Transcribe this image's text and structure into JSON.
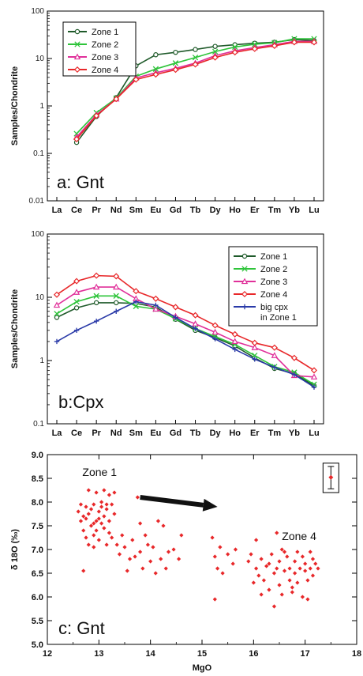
{
  "chart_data": [
    {
      "type": "line",
      "panel_label": "a: Gnt",
      "ylabel": "Samples/Chondrite",
      "yscale": "log",
      "ylim": [
        0.01,
        100
      ],
      "yticks": [
        "100",
        "10",
        "1",
        "0.1",
        "0.01"
      ],
      "categories": [
        "La",
        "Ce",
        "Pr",
        "Nd",
        "Sm",
        "Eu",
        "Gd",
        "Tb",
        "Dy",
        "Ho",
        "Er",
        "Tm",
        "Yb",
        "Lu"
      ],
      "legend_position": "top-left",
      "series": [
        {
          "name": "Zone 1",
          "color": "#1f5a2a",
          "marker": "circle",
          "values": [
            null,
            0.17,
            0.6,
            1.5,
            7,
            12,
            13.5,
            15.5,
            18,
            19.5,
            21,
            22,
            25,
            24
          ]
        },
        {
          "name": "Zone 2",
          "color": "#2ec43a",
          "marker": "x",
          "values": [
            null,
            0.26,
            0.72,
            1.45,
            4.2,
            6,
            8,
            10.5,
            14,
            17.5,
            20,
            21.5,
            26,
            26
          ]
        },
        {
          "name": "Zone 3",
          "color": "#e0309a",
          "marker": "triangle",
          "values": [
            null,
            0.22,
            0.65,
            1.4,
            3.9,
            5,
            6.2,
            8,
            11.5,
            14.5,
            17,
            19.5,
            23,
            23
          ]
        },
        {
          "name": "Zone 4",
          "color": "#e8282a",
          "marker": "diamond",
          "values": [
            null,
            0.2,
            0.62,
            1.4,
            3.6,
            4.6,
            5.8,
            7.5,
            10.5,
            13.5,
            16,
            18.5,
            22,
            22
          ]
        }
      ]
    },
    {
      "type": "line",
      "panel_label": "b:Cpx",
      "ylabel": "Samples/Chondrite",
      "yscale": "log",
      "ylim": [
        0.1,
        100
      ],
      "yticks": [
        "100",
        "10",
        "1",
        "0.1"
      ],
      "categories": [
        "La",
        "Ce",
        "Pr",
        "Nd",
        "Sm",
        "Eu",
        "Gd",
        "Tb",
        "Dy",
        "Ho",
        "Er",
        "Tm",
        "Yb",
        "Lu"
      ],
      "legend_position": "top-right",
      "series": [
        {
          "name": "Zone 1",
          "color": "#1f5a2a",
          "marker": "circle",
          "values": [
            4.8,
            6.8,
            8.2,
            8.2,
            8,
            7,
            4.5,
            3,
            2.3,
            1.7,
            1.1,
            0.75,
            0.62,
            0.4
          ]
        },
        {
          "name": "Zone 2",
          "color": "#2ec43a",
          "marker": "x",
          "values": [
            5.5,
            8.5,
            10.5,
            10.5,
            7.2,
            6.5,
            4.6,
            3.2,
            2.4,
            1.8,
            1.2,
            0.8,
            0.65,
            0.42
          ]
        },
        {
          "name": "Zone 3",
          "color": "#e0309a",
          "marker": "triangle",
          "values": [
            7.5,
            12,
            14.5,
            14.5,
            9.5,
            6.5,
            5,
            3.8,
            2.8,
            2,
            1.6,
            1.2,
            0.58,
            0.55
          ]
        },
        {
          "name": "Zone 4",
          "color": "#e8282a",
          "marker": "diamond",
          "values": [
            11,
            18,
            22,
            21.5,
            12.5,
            9.5,
            7,
            5.2,
            3.6,
            2.6,
            1.9,
            1.6,
            1.1,
            0.7
          ]
        },
        {
          "name": "big cpx\nin Zone 1",
          "color": "#2a3aa8",
          "marker": "plus",
          "values": [
            2,
            3,
            4.2,
            6,
            8.5,
            7.5,
            4.8,
            3.2,
            2.2,
            1.5,
            1.05,
            0.78,
            0.6,
            0.38
          ]
        }
      ]
    },
    {
      "type": "scatter",
      "panel_label": "c: Gnt",
      "xlabel": "MgO",
      "ylabel": "δ 18O (‰)",
      "xlim": [
        12,
        18
      ],
      "ylim": [
        5.0,
        9.0
      ],
      "xticks": [
        "12",
        "13",
        "14",
        "15",
        "16",
        "17",
        "18"
      ],
      "yticks": [
        "9.0",
        "8.5",
        "8.0",
        "7.5",
        "7.0",
        "6.5",
        "6.0",
        "5.5",
        "5.0"
      ],
      "annotations": [
        "Zone 1",
        "Zone 4"
      ],
      "arrow": {
        "from": [
          13.8,
          8.1
        ],
        "to": [
          15.3,
          7.9
        ]
      },
      "error_bar": {
        "x": 17.5,
        "y": 8.52,
        "low": 8.28,
        "high": 8.75
      },
      "color": "#e8282a",
      "points": [
        [
          12.6,
          7.8
        ],
        [
          12.65,
          7.6
        ],
        [
          12.7,
          7.7
        ],
        [
          12.7,
          6.55
        ],
        [
          12.7,
          7.4
        ],
        [
          12.75,
          7.9
        ],
        [
          12.75,
          7.25
        ],
        [
          12.8,
          8.25
        ],
        [
          12.8,
          7.75
        ],
        [
          12.8,
          7.1
        ],
        [
          12.85,
          7.5
        ],
        [
          12.85,
          7.85
        ],
        [
          12.9,
          7.95
        ],
        [
          12.9,
          7.3
        ],
        [
          12.9,
          7.05
        ],
        [
          12.95,
          8.2
        ],
        [
          12.95,
          7.6
        ],
        [
          12.95,
          7.4
        ],
        [
          13.0,
          7.8
        ],
        [
          13.0,
          7.65
        ],
        [
          13.0,
          7.2
        ],
        [
          13.05,
          8.0
        ],
        [
          13.05,
          7.9
        ],
        [
          13.1,
          7.7
        ],
        [
          13.1,
          7.45
        ],
        [
          13.1,
          8.25
        ],
        [
          13.15,
          7.85
        ],
        [
          13.15,
          7.1
        ],
        [
          13.2,
          8.15
        ],
        [
          13.2,
          7.6
        ],
        [
          13.2,
          7.35
        ],
        [
          13.25,
          7.95
        ],
        [
          13.25,
          7.25
        ],
        [
          13.3,
          8.2
        ],
        [
          13.3,
          7.75
        ],
        [
          12.65,
          7.95
        ],
        [
          12.9,
          7.55
        ],
        [
          13.05,
          7.55
        ],
        [
          12.75,
          7.65
        ],
        [
          13.15,
          7.95
        ],
        [
          13.35,
          7.1
        ],
        [
          13.4,
          6.9
        ],
        [
          13.45,
          7.3
        ],
        [
          13.5,
          7.05
        ],
        [
          13.55,
          6.55
        ],
        [
          13.6,
          6.8
        ],
        [
          13.65,
          7.2
        ],
        [
          13.75,
          8.1
        ],
        [
          13.8,
          6.95
        ],
        [
          13.8,
          7.55
        ],
        [
          13.85,
          6.6
        ],
        [
          13.9,
          7.3
        ],
        [
          13.95,
          7.1
        ],
        [
          14.0,
          6.75
        ],
        [
          14.05,
          7.05
        ],
        [
          14.15,
          7.6
        ],
        [
          14.2,
          6.8
        ],
        [
          14.25,
          7.5
        ],
        [
          14.3,
          6.6
        ],
        [
          14.35,
          6.95
        ],
        [
          14.45,
          7.0
        ],
        [
          14.55,
          6.8
        ],
        [
          14.6,
          7.3
        ],
        [
          14.1,
          6.5
        ],
        [
          13.7,
          6.85
        ],
        [
          15.2,
          7.25
        ],
        [
          15.25,
          6.85
        ],
        [
          15.3,
          6.6
        ],
        [
          15.35,
          7.05
        ],
        [
          15.25,
          5.95
        ],
        [
          15.4,
          6.5
        ],
        [
          15.5,
          6.9
        ],
        [
          15.6,
          6.7
        ],
        [
          15.65,
          7.0
        ],
        [
          15.9,
          6.75
        ],
        [
          15.95,
          6.9
        ],
        [
          16.0,
          6.3
        ],
        [
          16.05,
          6.6
        ],
        [
          16.05,
          7.2
        ],
        [
          16.1,
          6.45
        ],
        [
          16.15,
          6.8
        ],
        [
          16.2,
          6.35
        ],
        [
          16.25,
          6.65
        ],
        [
          16.3,
          6.15
        ],
        [
          16.35,
          6.9
        ],
        [
          16.4,
          6.5
        ],
        [
          16.4,
          5.8
        ],
        [
          16.45,
          6.6
        ],
        [
          16.5,
          6.75
        ],
        [
          16.5,
          6.25
        ],
        [
          16.55,
          7.0
        ],
        [
          16.55,
          6.05
        ],
        [
          16.6,
          6.55
        ],
        [
          16.65,
          6.85
        ],
        [
          16.7,
          6.6
        ],
        [
          16.7,
          6.35
        ],
        [
          16.75,
          6.1
        ],
        [
          16.8,
          6.75
        ],
        [
          16.8,
          6.5
        ],
        [
          16.85,
          6.95
        ],
        [
          16.85,
          6.3
        ],
        [
          16.9,
          6.6
        ],
        [
          16.95,
          6.85
        ],
        [
          16.95,
          6.0
        ],
        [
          17.0,
          6.55
        ],
        [
          17.0,
          6.7
        ],
        [
          17.05,
          6.35
        ],
        [
          17.05,
          5.95
        ],
        [
          17.1,
          6.6
        ],
        [
          17.1,
          6.95
        ],
        [
          17.15,
          6.45
        ],
        [
          17.2,
          6.7
        ],
        [
          17.25,
          6.6
        ],
        [
          16.45,
          7.35
        ],
        [
          16.6,
          6.95
        ],
        [
          16.3,
          6.7
        ],
        [
          16.15,
          6.05
        ],
        [
          16.75,
          6.2
        ],
        [
          17.15,
          6.8
        ]
      ]
    }
  ]
}
